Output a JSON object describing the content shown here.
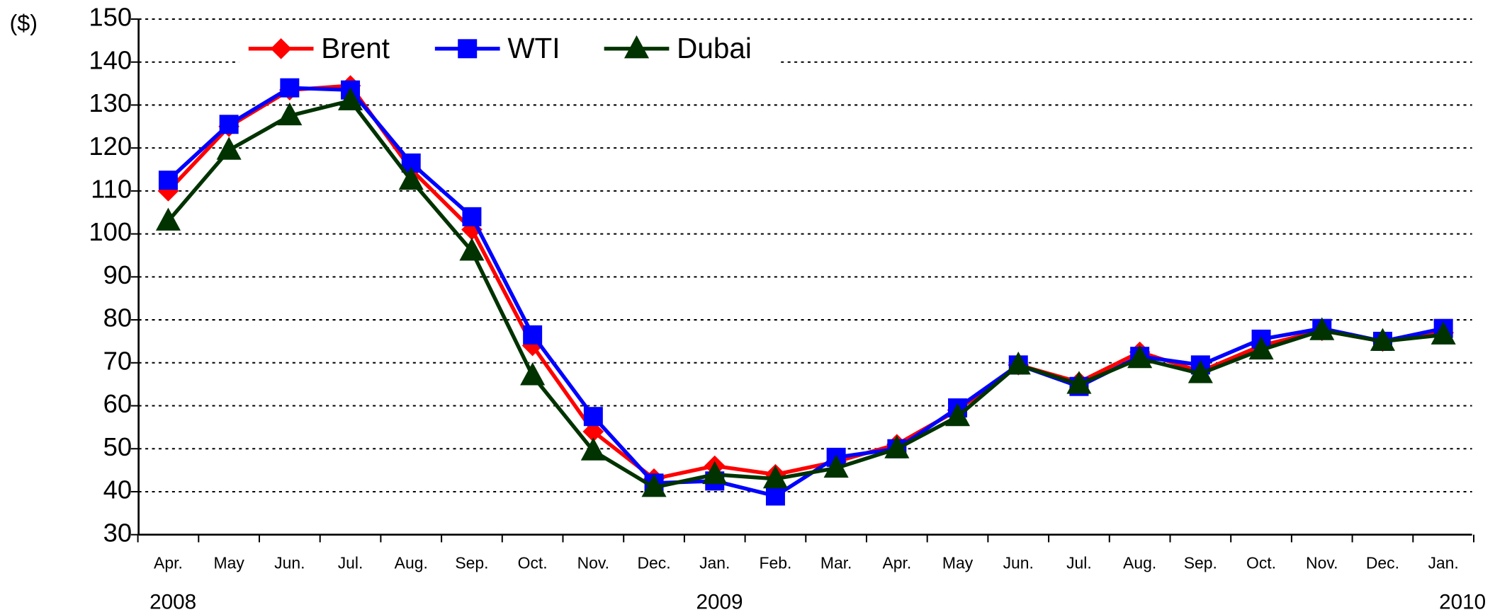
{
  "chart_data": {
    "type": "line",
    "y_label": "($)",
    "categories": [
      "Apr.",
      "May",
      "Jun.",
      "Jul.",
      "Aug.",
      "Sep.",
      "Oct.",
      "Nov.",
      "Dec.",
      "Jan.",
      "Feb.",
      "Mar.",
      "Apr.",
      "May",
      "Jun.",
      "Jul.",
      "Aug.",
      "Sep.",
      "Oct.",
      "Nov.",
      "Dec.",
      "Jan."
    ],
    "year_labels": [
      "2008",
      "2009",
      "2010"
    ],
    "series": [
      {
        "name": "Brent",
        "color": "#ff0000",
        "marker": "diamond",
        "values": [
          110,
          125,
          133.5,
          134.5,
          115,
          101,
          74,
          54,
          43,
          46,
          44,
          47,
          51,
          59,
          69.5,
          65.5,
          72.5,
          68,
          74,
          77.5,
          75,
          77
        ]
      },
      {
        "name": "WTI",
        "color": "#0000ff",
        "marker": "square",
        "values": [
          112.5,
          125.5,
          134,
          133.5,
          116.5,
          104,
          76.5,
          57.5,
          42,
          42.5,
          39,
          48,
          50,
          59.5,
          69.5,
          64.5,
          71.5,
          69.5,
          75.5,
          78,
          75,
          78
        ]
      },
      {
        "name": "Dubai",
        "color": "#003300",
        "marker": "triangle",
        "values": [
          103,
          119.5,
          127.5,
          131,
          112.5,
          96,
          67,
          49.5,
          41,
          44,
          43,
          45.5,
          50,
          57.5,
          69.5,
          65,
          71,
          67.5,
          73,
          77.5,
          75,
          76.5
        ]
      }
    ],
    "ylim": [
      30,
      150
    ],
    "yticks": [
      30,
      40,
      50,
      60,
      70,
      80,
      90,
      100,
      110,
      120,
      130,
      140,
      150
    ],
    "grid": true,
    "legend": "top-left"
  }
}
